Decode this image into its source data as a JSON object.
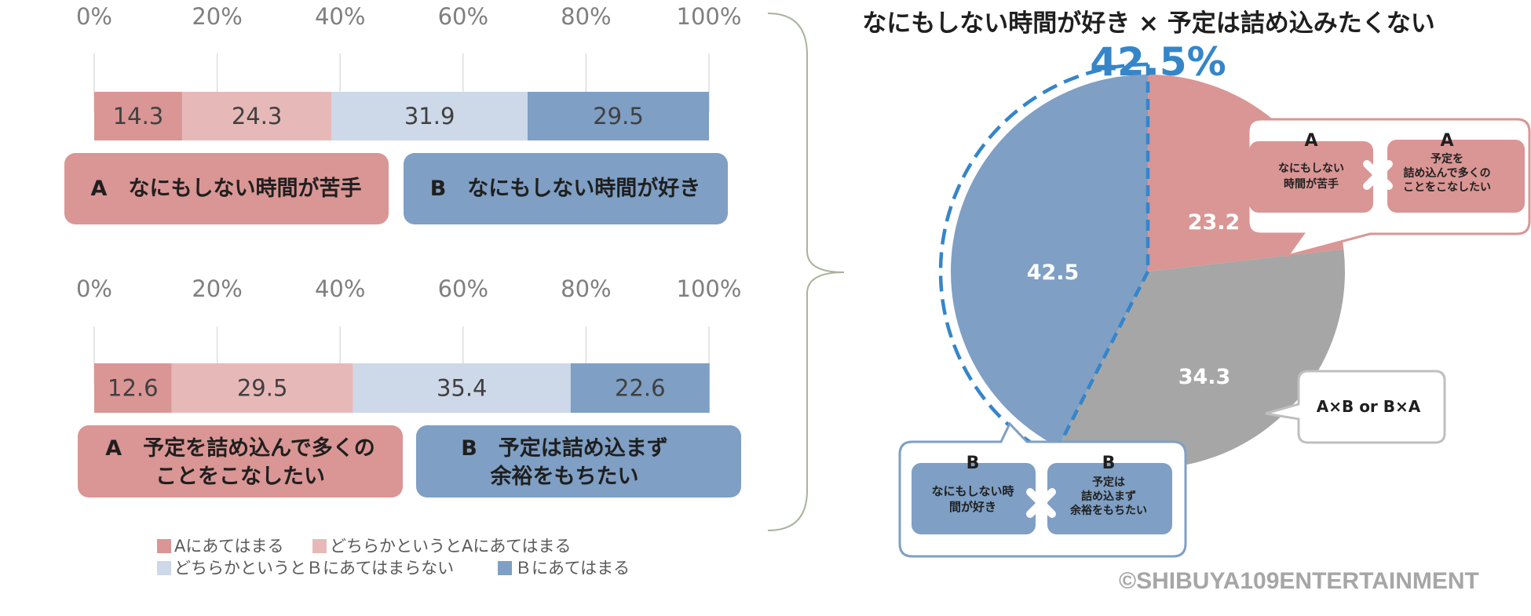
{
  "chart_data": [
    {
      "type": "bar",
      "orientation": "horizontal",
      "stacked": true,
      "x_ticks": [
        "0%",
        "20%",
        "40%",
        "60%",
        "80%",
        "100%"
      ],
      "xlim": [
        0,
        100
      ],
      "series": [
        {
          "name": "Aにあてはまる",
          "values": [
            14.3
          ]
        },
        {
          "name": "どちらかというとAにあてはまる",
          "values": [
            24.3
          ]
        },
        {
          "name": "どちらかというとＢにあてはまらない",
          "values": [
            31.9
          ]
        },
        {
          "name": "Ｂにあてはまる",
          "values": [
            29.5
          ]
        }
      ],
      "label_a": "A　なにもしない時間が苦手",
      "label_b": "B　なにもしない時間が好き",
      "grid": true
    },
    {
      "type": "bar",
      "orientation": "horizontal",
      "stacked": true,
      "x_ticks": [
        "0%",
        "20%",
        "40%",
        "60%",
        "80%",
        "100%"
      ],
      "xlim": [
        0,
        100
      ],
      "series": [
        {
          "name": "Aにあてはまる",
          "values": [
            12.6
          ]
        },
        {
          "name": "どちらかというとAにあてはまる",
          "values": [
            29.5
          ]
        },
        {
          "name": "どちらかというとＢにあてはまらない",
          "values": [
            35.4
          ]
        },
        {
          "name": "Ｂにあてはまる",
          "values": [
            22.6
          ]
        }
      ],
      "label_a_lines": [
        "A　予定を詰め込んで多くの",
        "ことをこなしたい"
      ],
      "label_b_lines": [
        "B　予定は詰め込まず",
        "余裕をもちたい"
      ],
      "grid": true
    },
    {
      "type": "pie",
      "title": "なにもしない時間が好き × 予定は詰め込みたくない",
      "highlight": "42.5%",
      "slices": [
        {
          "label": "A×A",
          "value": 23.2,
          "color": "#d99694"
        },
        {
          "label": "A×B or B×A",
          "value": 34.3,
          "color": "#a6a6a6"
        },
        {
          "label": "B×B",
          "value": 42.5,
          "color": "#7f9fc4"
        }
      ],
      "callout_aa": {
        "left_head": "A",
        "left_lines": [
          "なにもしない",
          "時間が苦手"
        ],
        "right_head": "A",
        "right_lines": [
          "予定を",
          "詰め込んで多くの",
          "ことをこなしたい"
        ]
      },
      "callout_mixed": "A×B or B×A",
      "callout_bb": {
        "left_head": "B",
        "left_lines": [
          "なにもしない時",
          "間が好き"
        ],
        "right_head": "B",
        "right_lines": [
          "予定は",
          "詰め込まず",
          "余裕をもちたい"
        ]
      }
    }
  ],
  "legend": [
    {
      "label": "Aにあてはまる",
      "color": "#d99694"
    },
    {
      "label": "どちらかというとAにあてはまる",
      "color": "#e6b9b8"
    },
    {
      "label": "どちらかというとＢにあてはまらない",
      "color": "#cdd8e8"
    },
    {
      "label": "Ｂにあてはまる",
      "color": "#7f9fc4"
    }
  ],
  "copyright": "©SHIBUYA109ENTERTAINMENT"
}
